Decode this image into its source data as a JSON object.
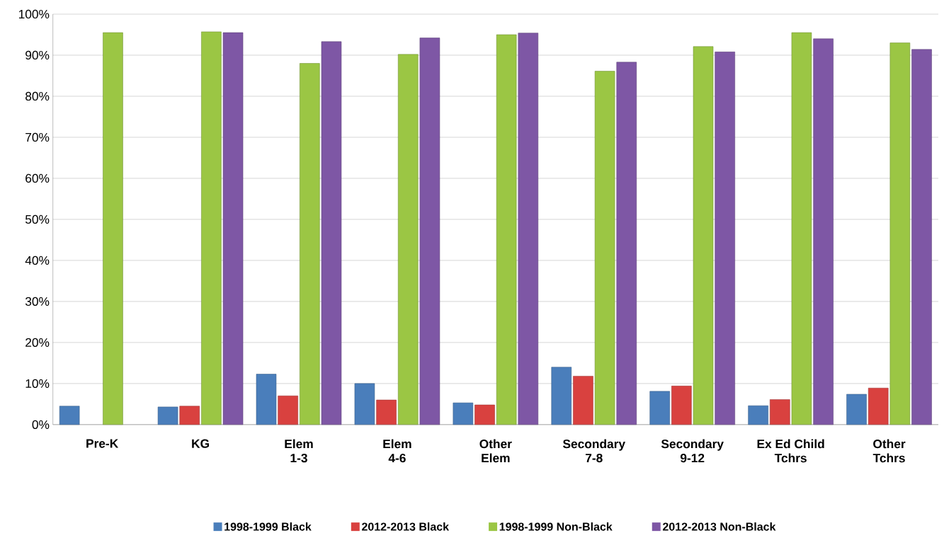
{
  "chart_data": {
    "type": "bar",
    "categories": [
      "Pre-K",
      "KG",
      "Elem\n1-3",
      "Elem\n4-6",
      "Other\nElem",
      "Secondary\n7-8",
      "Secondary\n9-12",
      "Ex Ed Child\nTchrs",
      "Other\nTchrs"
    ],
    "series": [
      {
        "name": "1998-1999 Black",
        "color": "#4a7ebb",
        "values": [
          4.5,
          4.3,
          12.3,
          10,
          5.3,
          14,
          8.1,
          4.6,
          7.4
        ]
      },
      {
        "name": "2012-2013 Black",
        "color": "#d9413f",
        "values": [
          null,
          4.5,
          7,
          6,
          4.8,
          11.8,
          9.4,
          6.1,
          8.9
        ]
      },
      {
        "name": "1998-1999 Non-Black",
        "color": "#9bc644",
        "values": [
          95.5,
          95.7,
          88,
          90.2,
          95,
          86.1,
          92.1,
          95.5,
          93
        ]
      },
      {
        "name": "2012-2013 Non-Black",
        "color": "#7e57a5",
        "values": [
          null,
          95.5,
          93.3,
          94.2,
          95.4,
          88.3,
          90.8,
          94,
          91.4
        ]
      }
    ],
    "ylim": [
      0,
      100
    ],
    "yticks": [
      {
        "value": 0,
        "label": "0%"
      },
      {
        "value": 10,
        "label": "10%"
      },
      {
        "value": 20,
        "label": "20%"
      },
      {
        "value": 30,
        "label": "30%"
      },
      {
        "value": 40,
        "label": "40%"
      },
      {
        "value": 50,
        "label": "50%"
      },
      {
        "value": 60,
        "label": "60%"
      },
      {
        "value": 70,
        "label": "70%"
      },
      {
        "value": 80,
        "label": "80%"
      },
      {
        "value": 90,
        "label": "90%"
      },
      {
        "value": 100,
        "label": "100%"
      }
    ],
    "grid": "y",
    "legend": "bottom"
  }
}
